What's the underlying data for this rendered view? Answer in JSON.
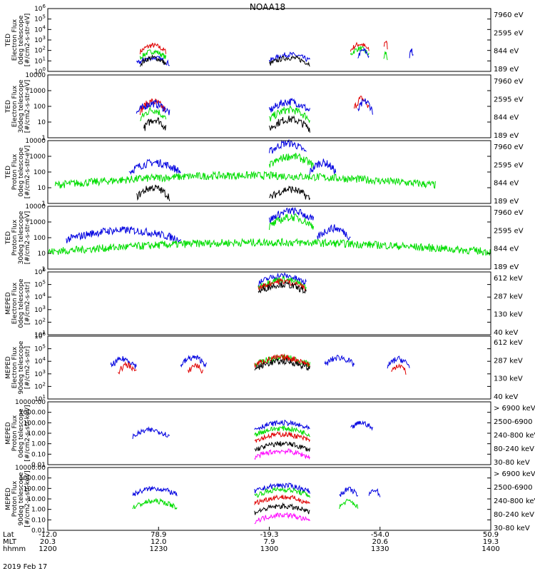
{
  "title": "NOAA18",
  "date_label": "2019 Feb 17",
  "colors": {
    "c1": "#000000",
    "c2": "#e00000",
    "c3": "#00dd00",
    "c4": "#0000e0",
    "c5": "#ff00ff"
  },
  "panels": [
    {
      "ylabel": [
        "TED",
        "Electron Flux",
        "0deg telescope",
        "[#/cm2-s-str-eV]"
      ],
      "scale": "log-sup",
      "ylim": [
        1.0,
        1000000.0
      ],
      "ticks": [
        {
          "v": 1000000.0,
          "base": "10",
          "exp": "6"
        },
        {
          "v": 100000.0,
          "base": "10",
          "exp": "5"
        },
        {
          "v": 10000.0,
          "base": "10",
          "exp": "4"
        },
        {
          "v": 1000.0,
          "base": "10",
          "exp": "3"
        },
        {
          "v": 100.0,
          "base": "10",
          "exp": "2"
        },
        {
          "v": 10.0,
          "base": "10",
          "exp": "1"
        },
        {
          "v": 1.0,
          "base": "10",
          "exp": "0"
        }
      ],
      "legend": [
        "7960 eV",
        "2595 eV",
        "844 eV",
        "189 eV"
      ],
      "legend_colors": [
        "c1",
        "c2",
        "c3",
        "c4"
      ]
    },
    {
      "ylabel": [
        "TED",
        "Electron Flux",
        "30deg telescope",
        "[#/cm2-s-str-eV]"
      ],
      "scale": "log",
      "ylim": [
        1,
        10000
      ],
      "ticks": [
        {
          "v": 10000,
          "label": "10000"
        },
        {
          "v": 1000,
          "label": "1000"
        },
        {
          "v": 100,
          "label": "100"
        },
        {
          "v": 10,
          "label": "10"
        },
        {
          "v": 1,
          "label": "1"
        }
      ],
      "legend": [
        "7960 eV",
        "2595 eV",
        "844 eV",
        "189 eV"
      ],
      "legend_colors": [
        "c1",
        "c2",
        "c3",
        "c4"
      ]
    },
    {
      "ylabel": [
        "TED",
        "Proton Flux",
        "0deg telescope",
        "[#/cm2-s-str-eV]"
      ],
      "scale": "log",
      "ylim": [
        1,
        10000
      ],
      "ticks": [
        {
          "v": 10000,
          "label": "10000"
        },
        {
          "v": 1000,
          "label": "1000"
        },
        {
          "v": 100,
          "label": "100"
        },
        {
          "v": 10,
          "label": "10"
        },
        {
          "v": 1,
          "label": "1"
        }
      ],
      "legend": [
        "7960 eV",
        "2595 eV",
        "844 eV",
        "189 eV"
      ],
      "legend_colors": [
        "c1",
        "c2",
        "c3",
        "c4"
      ]
    },
    {
      "ylabel": [
        "TED",
        "Proton Flux",
        "30deg telescope",
        "[#/cm2-s-str-eV]"
      ],
      "scale": "log",
      "ylim": [
        1,
        10000
      ],
      "ticks": [
        {
          "v": 10000,
          "label": "10000"
        },
        {
          "v": 1000,
          "label": "1000"
        },
        {
          "v": 100,
          "label": "100"
        },
        {
          "v": 10,
          "label": "10"
        },
        {
          "v": 1,
          "label": "1"
        }
      ],
      "legend": [
        "7960 eV",
        "2595 eV",
        "844 eV",
        "189 eV"
      ],
      "legend_colors": [
        "c1",
        "c2",
        "c3",
        "c4"
      ]
    },
    {
      "ylabel": [
        "MEPED",
        "Electron Flux",
        "0deg telescope",
        "[#/cm2-s-str]"
      ],
      "scale": "log-sup",
      "ylim": [
        10.0,
        1000000.0
      ],
      "ticks": [
        {
          "v": 1000000.0,
          "base": "10",
          "exp": "6"
        },
        {
          "v": 100000.0,
          "base": "10",
          "exp": "5"
        },
        {
          "v": 10000.0,
          "base": "10",
          "exp": "4"
        },
        {
          "v": 1000.0,
          "base": "10",
          "exp": "3"
        },
        {
          "v": 100.0,
          "base": "10",
          "exp": "2"
        },
        {
          "v": 10.0,
          "base": "10",
          "exp": "1"
        }
      ],
      "legend": [
        "612 keV",
        "287 keV",
        "130 keV",
        "40 keV"
      ],
      "legend_colors": [
        "c1",
        "c2",
        "c3",
        "c4"
      ]
    },
    {
      "ylabel": [
        "MEPED",
        "Electron Flux",
        "90deg telescope",
        "[#/cm2-s-str]"
      ],
      "scale": "log-sup",
      "ylim": [
        10.0,
        1000000.0
      ],
      "ticks": [
        {
          "v": 1000000.0,
          "base": "10",
          "exp": "6"
        },
        {
          "v": 100000.0,
          "base": "10",
          "exp": "5"
        },
        {
          "v": 10000.0,
          "base": "10",
          "exp": "4"
        },
        {
          "v": 1000.0,
          "base": "10",
          "exp": "3"
        },
        {
          "v": 100.0,
          "base": "10",
          "exp": "2"
        },
        {
          "v": 10.0,
          "base": "10",
          "exp": "1"
        }
      ],
      "legend": [
        "612 keV",
        "287 keV",
        "130 keV",
        "40 keV"
      ],
      "legend_colors": [
        "c1",
        "c2",
        "c3",
        "c4"
      ]
    },
    {
      "ylabel": [
        "MEPED",
        "Proton Flux",
        "0deg telescope",
        "[#/cm2-s-str-keV]"
      ],
      "scale": "log",
      "ylim": [
        0.01,
        10000
      ],
      "ticks": [
        {
          "v": 10000,
          "label": "10000.00"
        },
        {
          "v": 1000,
          "label": "1000.00"
        },
        {
          "v": 100,
          "label": "100.00"
        },
        {
          "v": 10,
          "label": "10.00"
        },
        {
          "v": 1,
          "label": "1.00"
        },
        {
          "v": 0.1,
          "label": "0.10"
        },
        {
          "v": 0.01,
          "label": "0.01"
        }
      ],
      "legend": [
        "> 6900 keV",
        "2500-6900",
        "240-800 keV",
        "80-240 keV",
        "30-80 keV"
      ],
      "legend_colors": [
        "c5",
        "c1",
        "c2",
        "c3",
        "c4"
      ]
    },
    {
      "ylabel": [
        "MEPED",
        "Proton Flux",
        "90deg telescope",
        "[#/cm2-s-str-keV]"
      ],
      "scale": "log",
      "ylim": [
        0.01,
        10000
      ],
      "ticks": [
        {
          "v": 10000,
          "label": "10000.00"
        },
        {
          "v": 1000,
          "label": "1000.00"
        },
        {
          "v": 100,
          "label": "100.00"
        },
        {
          "v": 10,
          "label": "10.00"
        },
        {
          "v": 1,
          "label": "1.00"
        },
        {
          "v": 0.1,
          "label": "0.10"
        },
        {
          "v": 0.01,
          "label": "0.01"
        }
      ],
      "legend": [
        "> 6900 keV",
        "2500-6900",
        "240-800 keV",
        "80-240 keV",
        "30-80 keV"
      ],
      "legend_colors": [
        "c5",
        "c1",
        "c2",
        "c3",
        "c4"
      ]
    }
  ],
  "xaxis": {
    "row_labels": [
      "Lat",
      "MLT",
      "hhmm"
    ],
    "columns": [
      {
        "lat": "-12.0",
        "mlt": "20.3",
        "hhmm": "1200"
      },
      {
        "lat": "78.9",
        "mlt": "12.0",
        "hhmm": "1230"
      },
      {
        "lat": "-19.3",
        "mlt": "7.9",
        "hhmm": "1300"
      },
      {
        "lat": "-54.0",
        "mlt": "20.6",
        "hhmm": "1330"
      },
      {
        "lat": "50.9",
        "mlt": "19.3",
        "hhmm": "1400"
      }
    ]
  },
  "chart_data": {
    "type": "line",
    "x_unit": "hhmm",
    "x_range": [
      "1200",
      "1400"
    ],
    "series_by_panel": [
      {
        "panel": 0,
        "series": [
          {
            "key": "c2",
            "bursts": [
              [
                "1225",
                "1232",
                300
              ],
              [
                "1322",
                "1327",
                400
              ],
              [
                "1331",
                "1332",
                800
              ]
            ]
          },
          {
            "key": "c3",
            "bursts": [
              [
                "1225",
                "1232",
                80
              ],
              [
                "1322",
                "1327",
                150
              ],
              [
                "1331",
                "1332",
                60
              ]
            ]
          },
          {
            "key": "c4",
            "bursts": [
              [
                "1224",
                "1233",
                20
              ],
              [
                "1300",
                "1311",
                40
              ],
              [
                "1324",
                "1327",
                100
              ],
              [
                "1338",
                "1339",
                100
              ]
            ]
          },
          {
            "key": "c1",
            "bursts": [
              [
                "1225",
                "1232",
                20
              ],
              [
                "1300",
                "1311",
                20
              ]
            ]
          }
        ]
      },
      {
        "panel": 1,
        "series": [
          {
            "key": "c2",
            "bursts": [
              [
                "1225",
                "1232",
                200
              ],
              [
                "1323",
                "1327",
                300
              ]
            ]
          },
          {
            "key": "c3",
            "bursts": [
              [
                "1225",
                "1232",
                60
              ],
              [
                "1300",
                "1311",
                60
              ]
            ]
          },
          {
            "key": "c4",
            "bursts": [
              [
                "1224",
                "1233",
                150
              ],
              [
                "1300",
                "1311",
                200
              ],
              [
                "1324",
                "1328",
                200
              ]
            ]
          },
          {
            "key": "c1",
            "bursts": [
              [
                "1226",
                "1232",
                15
              ],
              [
                "1300",
                "1311",
                15
              ]
            ]
          }
        ]
      },
      {
        "panel": 2,
        "series": [
          {
            "key": "c4",
            "bursts": [
              [
                "1222",
                "1236",
                400
              ],
              [
                "1300",
                "1310",
                7000
              ],
              [
                "1311",
                "1318",
                400
              ]
            ]
          },
          {
            "key": "c3",
            "bursts": [
              [
                "1202",
                "1345",
                60
              ],
              [
                "1300",
                "1312",
                1000
              ]
            ]
          },
          {
            "key": "c1",
            "bursts": [
              [
                "1224",
                "1233",
                10
              ],
              [
                "1300",
                "1311",
                8
              ]
            ]
          }
        ]
      },
      {
        "panel": 3,
        "series": [
          {
            "key": "c4",
            "bursts": [
              [
                "1205",
                "1236",
                300
              ],
              [
                "1300",
                "1312",
                5000
              ],
              [
                "1313",
                "1322",
                400
              ]
            ]
          },
          {
            "key": "c3",
            "bursts": [
              [
                "1200",
                "1400",
                50
              ],
              [
                "1300",
                "1312",
                2000
              ]
            ]
          }
        ]
      },
      {
        "panel": 4,
        "series": [
          {
            "key": "c4",
            "bursts": [
              [
                "1257",
                "1310",
                500000
              ]
            ]
          },
          {
            "key": "c3",
            "bursts": [
              [
                "1257",
                "1310",
                250000
              ]
            ]
          },
          {
            "key": "c2",
            "bursts": [
              [
                "1257",
                "1310",
                180000
              ]
            ]
          },
          {
            "key": "c1",
            "bursts": [
              [
                "1257",
                "1310",
                100000
              ]
            ]
          }
        ]
      },
      {
        "panel": 5,
        "series": [
          {
            "key": "c4",
            "bursts": [
              [
                "1217",
                "1224",
                15000
              ],
              [
                "1236",
                "1243",
                20000
              ],
              [
                "1315",
                "1323",
                20000
              ],
              [
                "1332",
                "1338",
                15000
              ]
            ]
          },
          {
            "key": "c3",
            "bursts": [
              [
                "1256",
                "1311",
                20000
              ]
            ]
          },
          {
            "key": "c2",
            "bursts": [
              [
                "1219",
                "1224",
                5000
              ],
              [
                "1238",
                "1242",
                5000
              ],
              [
                "1256",
                "1311",
                20000
              ],
              [
                "1333",
                "1337",
                5000
              ]
            ]
          },
          {
            "key": "c1",
            "bursts": [
              [
                "1256",
                "1311",
                10000
              ]
            ]
          }
        ]
      },
      {
        "panel": 6,
        "series": [
          {
            "key": "c4",
            "bursts": [
              [
                "1223",
                "1233",
                20
              ],
              [
                "1256",
                "1311",
                100
              ],
              [
                "1322",
                "1328",
                100
              ]
            ]
          },
          {
            "key": "c3",
            "bursts": [
              [
                "1256",
                "1311",
                30
              ]
            ]
          },
          {
            "key": "c2",
            "bursts": [
              [
                "1256",
                "1311",
                8
              ]
            ]
          },
          {
            "key": "c1",
            "bursts": [
              [
                "1256",
                "1311",
                1
              ]
            ]
          },
          {
            "key": "c5",
            "bursts": [
              [
                "1256",
                "1311",
                0.2
              ]
            ]
          }
        ]
      },
      {
        "panel": 7,
        "series": [
          {
            "key": "c4",
            "bursts": [
              [
                "1223",
                "1235",
                100
              ],
              [
                "1256",
                "1311",
                200
              ],
              [
                "1319",
                "1324",
                80
              ],
              [
                "1327",
                "1330",
                80
              ]
            ]
          },
          {
            "key": "c3",
            "bursts": [
              [
                "1223",
                "1235",
                6
              ],
              [
                "1256",
                "1311",
                80
              ],
              [
                "1319",
                "1324",
                6
              ]
            ]
          },
          {
            "key": "c2",
            "bursts": [
              [
                "1256",
                "1311",
                15
              ]
            ]
          },
          {
            "key": "c1",
            "bursts": [
              [
                "1256",
                "1311",
                2
              ]
            ]
          },
          {
            "key": "c5",
            "bursts": [
              [
                "1256",
                "1311",
                0.3
              ]
            ]
          }
        ]
      }
    ]
  }
}
